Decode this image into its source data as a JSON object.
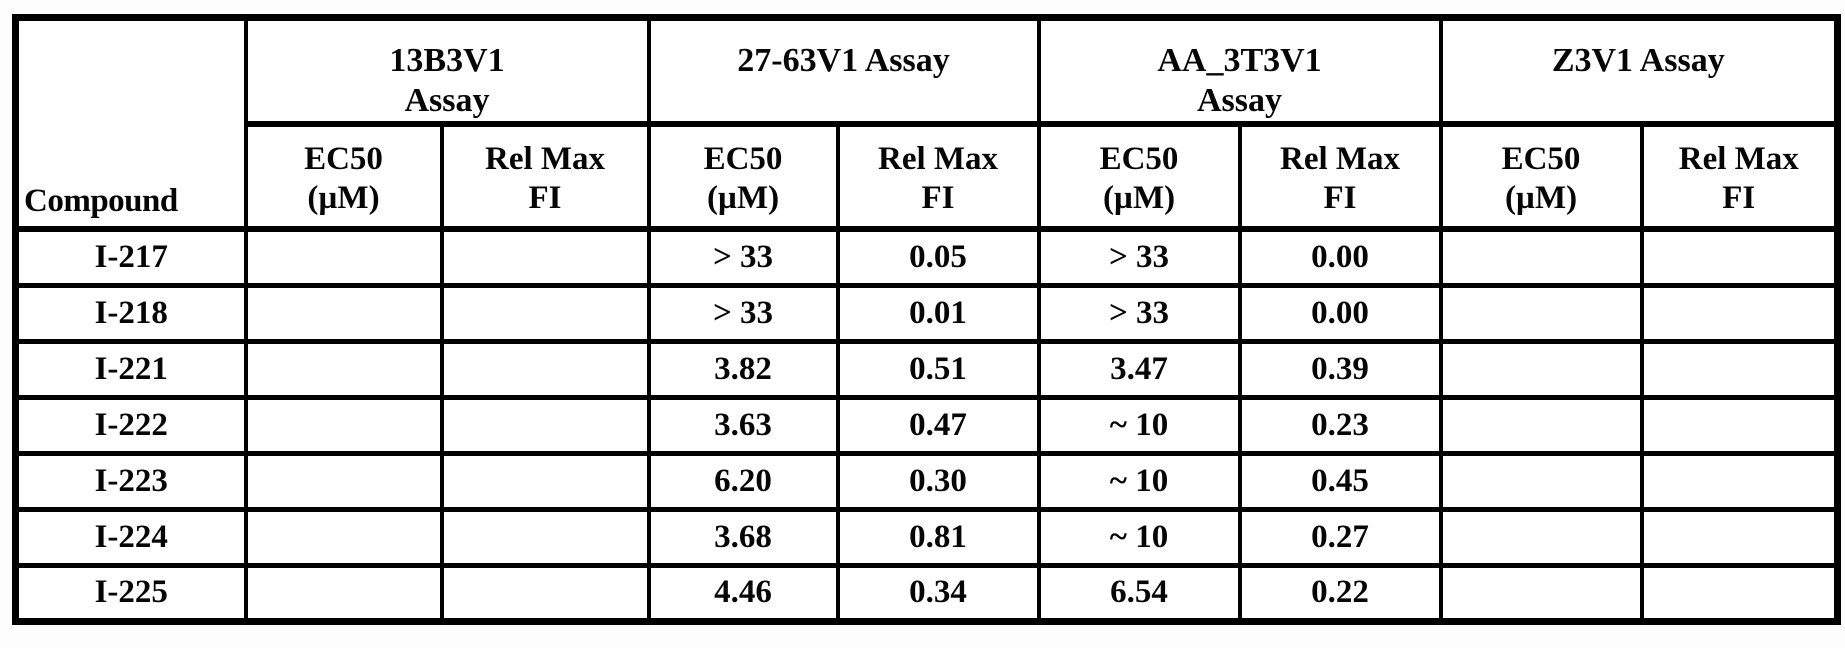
{
  "table": {
    "compound_header": "Compound",
    "assay_groups": [
      {
        "line1": "13B3V1",
        "line2": "Assay"
      },
      {
        "line1": "27-63V1 Assay",
        "line2": ""
      },
      {
        "line1": "AA_3T3V1",
        "line2": "Assay"
      },
      {
        "line1": "Z3V1 Assay",
        "line2": ""
      }
    ],
    "sub_headers": {
      "ec50": {
        "line1": "EC50",
        "line2": "(µM)"
      },
      "relmax": {
        "line1": "Rel Max",
        "line2": "FI"
      }
    },
    "rows": [
      {
        "compound": "I-217",
        "values": [
          "",
          "",
          "> 33",
          "0.05",
          "> 33",
          "0.00",
          "",
          ""
        ]
      },
      {
        "compound": "I-218",
        "values": [
          "",
          "",
          "> 33",
          "0.01",
          "> 33",
          "0.00",
          "",
          ""
        ]
      },
      {
        "compound": "I-221",
        "values": [
          "",
          "",
          "3.82",
          "0.51",
          "3.47",
          "0.39",
          "",
          ""
        ]
      },
      {
        "compound": "I-222",
        "values": [
          "",
          "",
          "3.63",
          "0.47",
          "~ 10",
          "0.23",
          "",
          ""
        ]
      },
      {
        "compound": "I-223",
        "values": [
          "",
          "",
          "6.20",
          "0.30",
          "~ 10",
          "0.45",
          "",
          ""
        ]
      },
      {
        "compound": "I-224",
        "values": [
          "",
          "",
          "3.68",
          "0.81",
          "~ 10",
          "0.27",
          "",
          ""
        ]
      },
      {
        "compound": "I-225",
        "values": [
          "",
          "",
          "4.46",
          "0.34",
          "6.54",
          "0.22",
          "",
          ""
        ]
      }
    ]
  }
}
